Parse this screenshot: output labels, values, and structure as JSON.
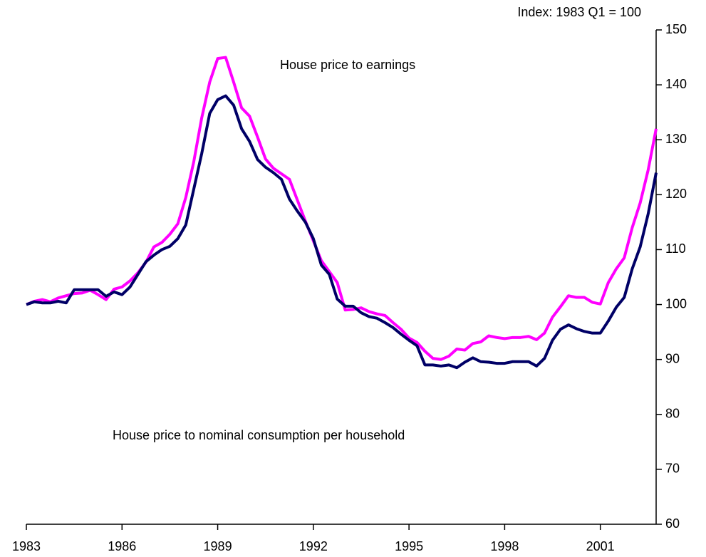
{
  "chart_data": {
    "type": "line",
    "y_axis_label": "Index: 1983 Q1 = 100",
    "x": [
      1983,
      1983.25,
      1983.5,
      1983.75,
      1984,
      1984.25,
      1984.5,
      1984.75,
      1985,
      1985.25,
      1985.5,
      1985.75,
      1986,
      1986.25,
      1986.5,
      1986.75,
      1987,
      1987.25,
      1987.5,
      1987.75,
      1988,
      1988.25,
      1988.5,
      1988.75,
      1989,
      1989.25,
      1989.5,
      1989.75,
      1990,
      1990.25,
      1990.5,
      1990.75,
      1991,
      1991.25,
      1991.5,
      1991.75,
      1992,
      1992.25,
      1992.5,
      1992.75,
      1993,
      1993.25,
      1993.5,
      1993.75,
      1994,
      1994.25,
      1994.5,
      1994.75,
      1995,
      1995.25,
      1995.5,
      1995.75,
      1996,
      1996.25,
      1996.5,
      1996.75,
      1997,
      1997.25,
      1997.5,
      1997.75,
      1998,
      1998.25,
      1998.5,
      1998.75,
      1999,
      1999.25,
      1999.5,
      1999.75,
      2000,
      2000.25,
      2000.5,
      2000.75,
      2001,
      2001.25,
      2001.5,
      2001.75,
      2002,
      2002.25,
      2002.5,
      2002.75
    ],
    "series": [
      {
        "name": "House price to earnings",
        "color": "#ff00ff",
        "values": [
          100,
          100.6,
          100.9,
          100.5,
          101.2,
          101.6,
          102,
          102.1,
          102.6,
          101.8,
          100.9,
          102.8,
          103.2,
          104.3,
          105.8,
          107.7,
          110.5,
          111.3,
          112.8,
          114.7,
          119.5,
          126,
          134,
          140.5,
          144.8,
          145,
          140.5,
          135.8,
          134.3,
          130.5,
          126.5,
          124.8,
          123.8,
          122.8,
          119,
          115.2,
          111.6,
          108,
          106,
          104,
          99,
          99.1,
          99.4,
          98.7,
          98.3,
          98,
          96.7,
          95.5,
          93.9,
          93.1,
          91.5,
          90.2,
          90,
          90.6,
          91.9,
          91.7,
          92.9,
          93.2,
          94.3,
          94,
          93.8,
          94,
          94,
          94.2,
          93.6,
          94.8,
          97.7,
          99.6,
          101.6,
          101.3,
          101.3,
          100.4,
          100.1,
          104,
          106.5,
          108.5,
          114,
          118.5,
          124.5,
          132
        ]
      },
      {
        "name": "House price to nominal consumption per household",
        "color": "#000066",
        "values": [
          100,
          100.5,
          100.3,
          100.3,
          100.6,
          100.3,
          102.7,
          102.7,
          102.7,
          102.7,
          101.5,
          102.3,
          101.8,
          103.2,
          105.5,
          107.8,
          109,
          110,
          110.6,
          112,
          114.5,
          121,
          127.5,
          134.8,
          137.3,
          138,
          136.3,
          132,
          129.7,
          126.4,
          125,
          124,
          122.8,
          119.2,
          117,
          115,
          112,
          107.2,
          105.5,
          101,
          99.7,
          99.7,
          98.5,
          97.8,
          97.5,
          96.7,
          95.8,
          94.6,
          93.5,
          92.5,
          89,
          89,
          88.8,
          89,
          88.5,
          89.5,
          90.3,
          89.6,
          89.5,
          89.3,
          89.3,
          89.6,
          89.6,
          89.6,
          88.8,
          90.2,
          93.5,
          95.5,
          96.3,
          95.6,
          95.1,
          94.8,
          94.8,
          97,
          99.5,
          101.3,
          106.5,
          110.5,
          116.5,
          124
        ]
      }
    ],
    "xlim": [
      1983,
      2002.75
    ],
    "xticks": [
      1983,
      1986,
      1989,
      1992,
      1995,
      1998,
      2001
    ],
    "ylim": [
      60,
      150
    ],
    "yticks": [
      60,
      70,
      80,
      90,
      100,
      110,
      120,
      130,
      140,
      150
    ]
  }
}
